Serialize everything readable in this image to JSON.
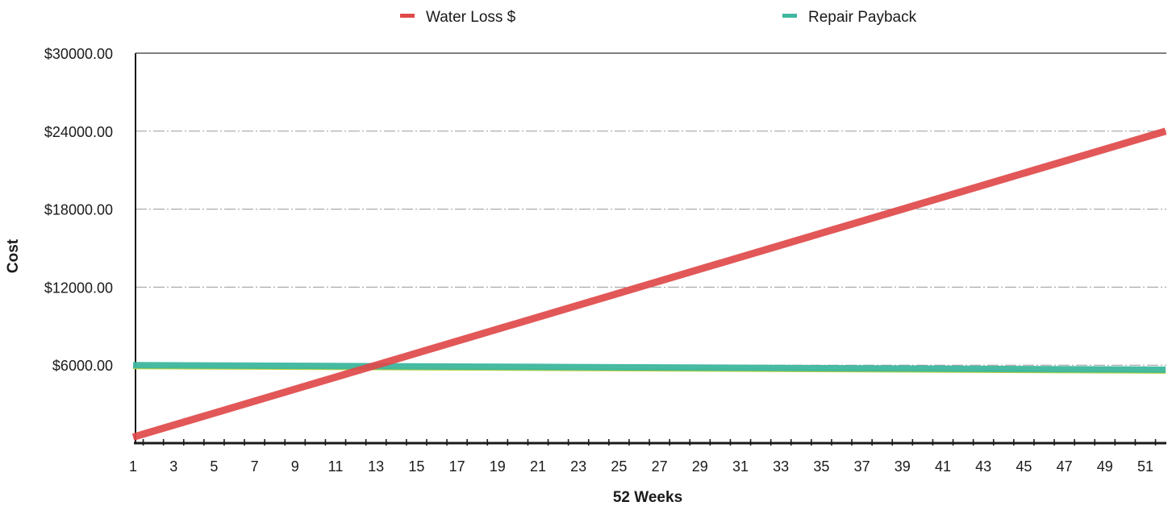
{
  "chart_data": {
    "type": "line",
    "title": "",
    "xlabel": "52 Weeks",
    "ylabel": "Cost",
    "x": [
      1,
      2,
      3,
      4,
      5,
      6,
      7,
      8,
      9,
      10,
      11,
      12,
      13,
      14,
      15,
      16,
      17,
      18,
      19,
      20,
      21,
      22,
      23,
      24,
      25,
      26,
      27,
      28,
      29,
      30,
      31,
      32,
      33,
      34,
      35,
      36,
      37,
      38,
      39,
      40,
      41,
      42,
      43,
      44,
      45,
      46,
      47,
      48,
      49,
      50,
      51,
      52
    ],
    "x_tick_labels": [
      "1",
      "3",
      "5",
      "7",
      "9",
      "11",
      "13",
      "15",
      "17",
      "19",
      "21",
      "23",
      "25",
      "27",
      "29",
      "31",
      "33",
      "35",
      "37",
      "39",
      "41",
      "43",
      "45",
      "47",
      "49",
      "51"
    ],
    "xlim": [
      1,
      52
    ],
    "ylim": [
      0,
      30000
    ],
    "y_ticks": [
      6000,
      12000,
      18000,
      24000,
      30000
    ],
    "y_tick_labels": [
      "$6000.00",
      "$12000.00",
      "$18000.00",
      "$24000.00",
      "$30000.00"
    ],
    "grid": true,
    "legend_position": "top",
    "series": [
      {
        "name": "Water Loss $",
        "color": "#e0494a",
        "start": {
          "x": 1,
          "y": 460
        },
        "end": {
          "x": 52,
          "y": 24000
        }
      },
      {
        "name": "Repair Payback",
        "color": "#3fb8a0",
        "start": {
          "x": 1,
          "y": 6000
        },
        "end": {
          "x": 52,
          "y": 5650
        }
      }
    ]
  }
}
